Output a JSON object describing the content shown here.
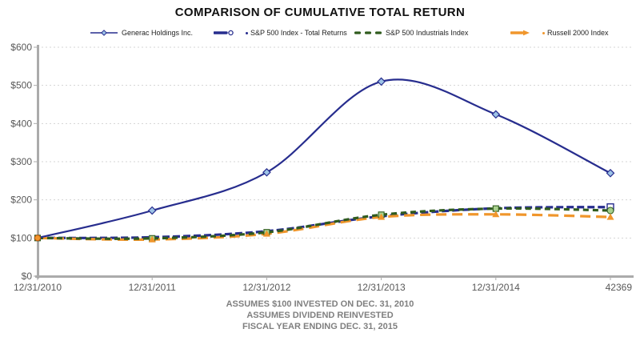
{
  "title": "COMPARISON OF CUMULATIVE TOTAL RETURN",
  "footnotes": [
    "ASSUMES $100 INVESTED ON DEC. 31, 2010",
    "ASSUMES DIVIDEND REINVESTED",
    "FISCAL YEAR ENDING DEC. 31, 2015"
  ],
  "colors": {
    "navy": "#272D8E",
    "green": "#2F5B1D",
    "orange": "#F0962C",
    "diamond_fill": "#9DC3E6",
    "square_fill": "#A9D18E",
    "gridline": "#D4D4D4",
    "axis": "#ABABAB",
    "tick_label": "#595959",
    "footer_text": "#7F7F7F",
    "title_text": "#111111"
  },
  "chart_data": {
    "type": "line",
    "title": "COMPARISON OF CUMULATIVE TOTAL RETURN",
    "categories": [
      "12/31/2010",
      "12/31/2011",
      "12/31/2012",
      "12/31/2013",
      "12/31/2014",
      "42369"
    ],
    "series": [
      {
        "name": "Generac Holdings Inc.",
        "values": [
          100,
          172,
          272,
          510,
          424,
          270
        ],
        "color": "#272D8E",
        "line_style": "solid",
        "marker": "diamond",
        "marker_fill": "#9DC3E6",
        "legend_sample": "line-diamond"
      },
      {
        "name": "S&P 500 Index - Total Returns",
        "values": [
          100,
          102,
          118,
          157,
          178,
          181
        ],
        "color": "#272D8E",
        "line_style": "dash",
        "marker": "open-square-last",
        "marker_fill": "#FFFFFF",
        "legend_sample": "thickline-marker-dot"
      },
      {
        "name": "S&P 500 Industrials Index",
        "values": [
          100,
          99,
          115,
          161,
          177,
          172
        ],
        "color": "#2F5B1D",
        "line_style": "dash-short",
        "marker": "square",
        "marker_fill": "#A9D18E",
        "legend_sample": "dashes"
      },
      {
        "name": "Russell 2000 Index",
        "values": [
          100,
          96,
          111,
          155,
          162,
          155
        ],
        "color": "#F0962C",
        "line_style": "dash-long",
        "marker": "triangle",
        "marker_fill": "#F0962C",
        "legend_sample": "arrow-dot"
      }
    ],
    "ylim": [
      0,
      600
    ],
    "ytick_step": 100,
    "ytick_labels": [
      "$0",
      "$100",
      "$200",
      "$300",
      "$400",
      "$500",
      "$600"
    ],
    "grid": "horizontal-dashed",
    "legend_position": "top",
    "x_axis_label": "",
    "y_axis_label": ""
  }
}
